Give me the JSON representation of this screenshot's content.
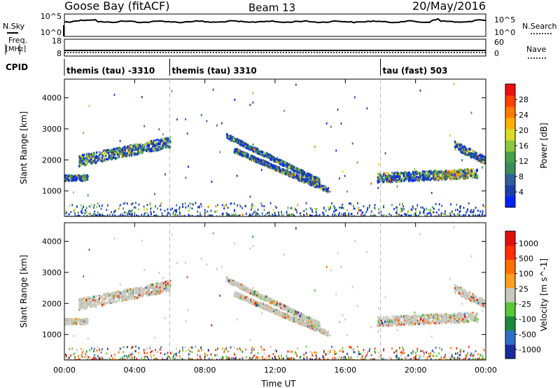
{
  "header": {
    "station": "Goose Bay (fitACF)",
    "beam": "Beam 13",
    "date": "20/May/2016"
  },
  "strips": {
    "nsky_label": "N.Sky",
    "nsearch_label": "N.Search",
    "noise_left_ticks": [
      "10^5",
      "10^0"
    ],
    "noise_right_ticks": [
      "10^5",
      "10^0"
    ],
    "freq_label": "Freq.",
    "freq_unit": "[MHz]",
    "freq_ticks": [
      "18",
      "8"
    ],
    "nave_label": "Nave",
    "nave_ticks": [
      "60",
      "0"
    ],
    "cpid_label": "CPID",
    "cpid_segments": [
      {
        "label": "themis (tau) -3310",
        "start_h": 0.0
      },
      {
        "label": "themis (tau) 3310",
        "start_h": 6.0
      },
      {
        "label": "tau (fast) 503",
        "start_h": 18.0
      }
    ]
  },
  "chart_data": [
    {
      "type": "heatmap",
      "panel": "power",
      "ylabel": "Slant Range [km]",
      "xlim_hours": [
        0,
        24
      ],
      "ylim_km": [
        180,
        4600
      ],
      "yticks": [
        1000,
        2000,
        3000,
        4000
      ],
      "colorbar": {
        "label": "Power [dB]",
        "ticks": [
          "4",
          "8",
          "12",
          "16",
          "20",
          "24",
          "28"
        ],
        "colors": [
          "#0022ff",
          "#1f3fa8",
          "#2e5f9a",
          "#3c8c5a",
          "#48a04a",
          "#8cc83c",
          "#d8dc28",
          "#ffb000",
          "#ff7a00",
          "#ff4000",
          "#ee1010"
        ]
      },
      "echo_bands": [
        {
          "h_start": 0.0,
          "h_end": 1.3,
          "r_start": 1450,
          "r_end": 1450,
          "width_km": 180
        },
        {
          "h_start": 0.8,
          "h_end": 6.0,
          "r_start": 2000,
          "r_end": 2600,
          "width_km": 350
        },
        {
          "h_start": 9.2,
          "h_end": 14.5,
          "r_start": 2800,
          "r_end": 1350,
          "width_km": 150
        },
        {
          "h_start": 9.6,
          "h_end": 15.0,
          "r_start": 2350,
          "r_end": 1050,
          "width_km": 150
        },
        {
          "h_start": 17.8,
          "h_end": 23.5,
          "r_start": 1450,
          "r_end": 1600,
          "width_km": 300
        },
        {
          "h_start": 22.2,
          "h_end": 24.0,
          "r_start": 2500,
          "r_end": 2000,
          "width_km": 250
        }
      ]
    },
    {
      "type": "heatmap",
      "panel": "velocity",
      "ylabel": "Slant Range [km]",
      "xlabel": "Time UT",
      "xlim_hours": [
        0,
        24
      ],
      "ylim_km": [
        180,
        4600
      ],
      "yticks": [
        1000,
        2000,
        3000,
        4000
      ],
      "xticks": [
        "00:00",
        "04:00",
        "08:00",
        "12:00",
        "16:00",
        "20:00",
        "00:00"
      ],
      "colorbar": {
        "label": "Velocity [m s^-1]",
        "ticks": [
          "1000",
          "500",
          "100",
          "25",
          "-25",
          "-100",
          "-500",
          "-1000"
        ],
        "colors": [
          "#1a2c9c",
          "#2f6fc9",
          "#1a8a3a",
          "#58c83a",
          "#c8c8c0",
          "#ffa020",
          "#ff7000",
          "#ff3000",
          "#e01010"
        ]
      }
    }
  ]
}
